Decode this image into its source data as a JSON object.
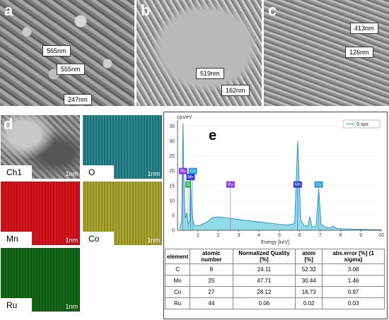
{
  "panels": {
    "a": {
      "letter": "a",
      "labels": [
        "565nm",
        "555nm",
        "247nm"
      ]
    },
    "b": {
      "letter": "b",
      "labels": [
        "519nm",
        "162nm"
      ]
    },
    "c": {
      "letter": "c",
      "labels": [
        "413nm",
        "126nm"
      ]
    },
    "d": {
      "letter": "d",
      "maps": [
        {
          "name": "Ch1",
          "scale": "1nm",
          "color": "#7a7a7a"
        },
        {
          "name": "O",
          "scale": "1nm",
          "color": "#237d82"
        },
        {
          "name": "Mn",
          "scale": "1nm",
          "color": "#c8121a"
        },
        {
          "name": "Co",
          "scale": "1nm",
          "color": "#9c9a2b"
        },
        {
          "name": "Ru",
          "scale": "1nm",
          "color": "#116014"
        }
      ]
    },
    "e": {
      "letter": "e"
    }
  },
  "chart_data": {
    "type": "line",
    "ylabel": "cps/eV",
    "xlabel": "Energy [keV]",
    "legend": "0.spx",
    "legend_position": "top-right",
    "xlim": [
      0,
      10
    ],
    "ylim": [
      0,
      37
    ],
    "xticks": [
      "1",
      "2",
      "3",
      "4",
      "5",
      "6",
      "7",
      "8",
      "9",
      "10"
    ],
    "yticks": [
      "0",
      "5",
      "10",
      "15",
      "20",
      "25",
      "30",
      "35"
    ],
    "series": [
      {
        "name": "0.spx",
        "color": "#2aa8c8",
        "x": [
          0.1,
          0.2,
          0.27,
          0.3,
          0.38,
          0.45,
          0.52,
          0.6,
          0.64,
          0.7,
          0.8,
          0.9,
          1.0,
          1.2,
          1.5,
          1.7,
          2.0,
          2.3,
          2.6,
          3.0,
          3.5,
          4.0,
          4.5,
          5.0,
          5.4,
          5.75,
          5.9,
          6.05,
          6.2,
          6.4,
          6.5,
          6.6,
          6.8,
          6.93,
          7.05,
          7.3,
          7.5,
          7.65,
          7.8,
          8.0,
          8.5,
          9.0,
          9.5,
          10.0
        ],
        "y": [
          0.5,
          3,
          36,
          20,
          4,
          6,
          2,
          3,
          18,
          6,
          2,
          1.5,
          1.5,
          2,
          3,
          4.2,
          4.5,
          4.3,
          4,
          3.6,
          3.2,
          2.8,
          2.4,
          2,
          1.8,
          2.2,
          30,
          3.5,
          1.6,
          1.4,
          4.5,
          1.2,
          1.2,
          14,
          2,
          1,
          0.8,
          1.5,
          0.6,
          0.5,
          0.4,
          0.3,
          0.2,
          0.2
        ]
      }
    ],
    "peak_labels": [
      {
        "text": "Ru",
        "x": 0.27,
        "y": 20,
        "color": "#8a3ad8"
      },
      {
        "text": "Co",
        "x": 0.75,
        "y": 20,
        "color": "#2a9ad8"
      },
      {
        "text": "Mn",
        "x": 0.64,
        "y": 18,
        "color": "#2a3ad8"
      },
      {
        "text": "O",
        "x": 0.52,
        "y": 15.5,
        "color": "#2ab84a"
      },
      {
        "text": "Ru",
        "x": 2.6,
        "y": 15.5,
        "color": "#8a3ad8"
      },
      {
        "text": "Mn",
        "x": 5.9,
        "y": 15.5,
        "color": "#2a3ad8"
      },
      {
        "text": "Co",
        "x": 6.93,
        "y": 15.5,
        "color": "#2a9ad8"
      }
    ]
  },
  "table": {
    "headers": [
      "element",
      "atomic number",
      "Normalized Quality [%]",
      "atom [%]",
      "abs.error [%] (1 sigma)"
    ],
    "rows": [
      [
        "C",
        "8",
        "24.11",
        "52.32",
        "3.08"
      ],
      [
        "Mn",
        "25",
        "47.71",
        "30.44",
        "1.46"
      ],
      [
        "Co",
        "27",
        "28.12",
        "16.73",
        "0.97"
      ],
      [
        "Ru",
        "44",
        "0.06",
        "0.02",
        "0.03"
      ]
    ]
  }
}
